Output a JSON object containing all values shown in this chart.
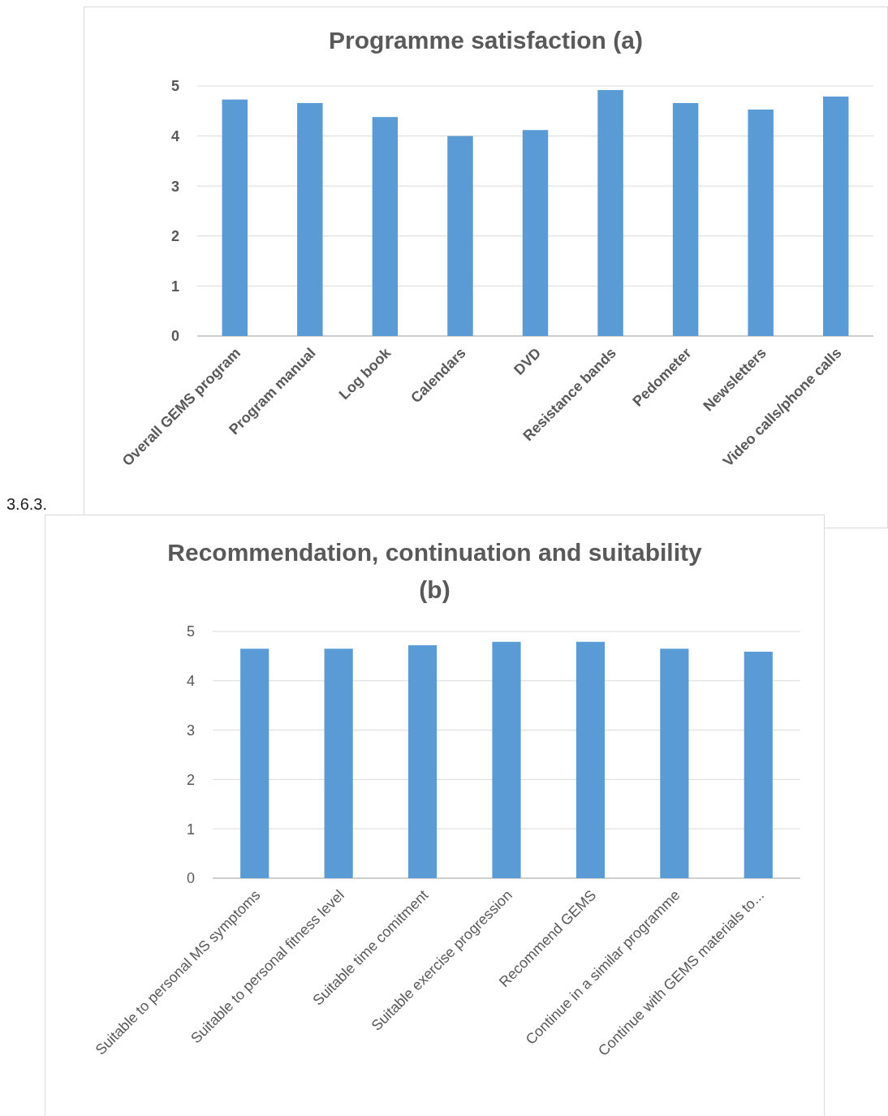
{
  "chart_data": [
    {
      "type": "bar",
      "title": "Programme satisfaction (a)",
      "categories": [
        "Overall GEMS program",
        "Program manual",
        "Log book",
        "Calendars",
        "DVD",
        "Resistance bands",
        "Pedometer",
        "Newsletters",
        "Video calls/phone calls"
      ],
      "values": [
        4.73,
        4.66,
        4.38,
        4.0,
        4.12,
        4.92,
        4.66,
        4.53,
        4.79
      ],
      "color": "#5b9bd5",
      "ylim": [
        0,
        5
      ],
      "yticks": [
        0,
        1,
        2,
        3,
        4,
        5
      ],
      "grid": "y",
      "annotations": [
        "3.6.3."
      ]
    },
    {
      "type": "bar",
      "title": "Recommendation, continuation and suitability (b)",
      "categories": [
        "Suitable to personal MS symptoms",
        "Suitable to personal fitness level",
        "Suitable time comitment",
        "Suitable exercise progression",
        "Recommend GEMS",
        "Continue in a similar programme",
        "Continue with GEMS materials to..."
      ],
      "values": [
        4.65,
        4.65,
        4.72,
        4.79,
        4.79,
        4.65,
        4.59
      ],
      "color": "#5b9bd5",
      "ylim": [
        0,
        5
      ],
      "yticks": [
        0,
        1,
        2,
        3,
        4,
        5
      ],
      "grid": "y"
    }
  ]
}
